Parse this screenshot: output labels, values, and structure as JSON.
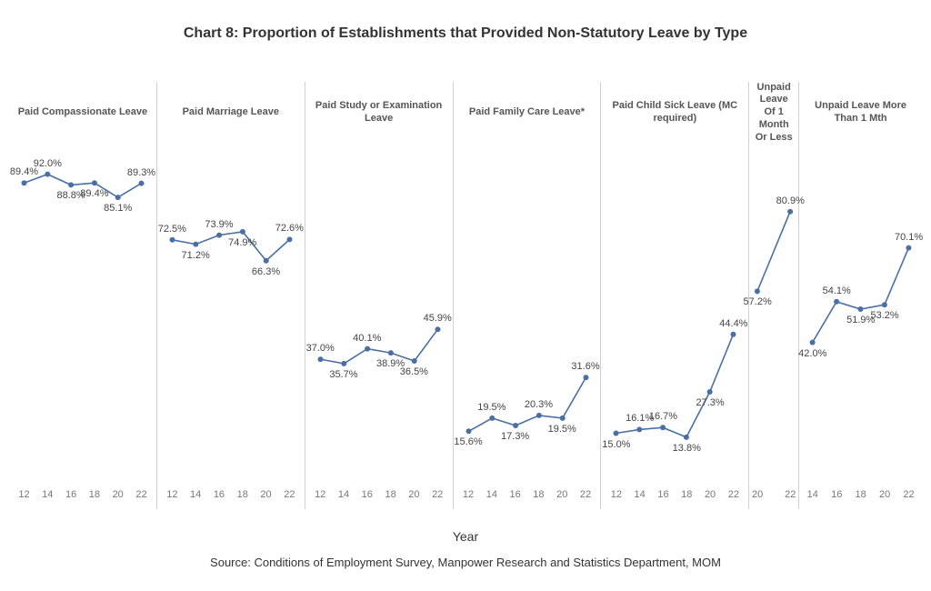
{
  "title": "Chart 8: Proportion of Establishments that Provided Non-Statutory Leave by Type",
  "xaxis_title": "Year",
  "source": "Source: Conditions of Employment Survey, Manpower Research and Statistics Department, MOM",
  "yrange": [
    0,
    100
  ],
  "line_color": "#4a6fa5",
  "marker_color": "#4a6fa5",
  "marker_size": 3,
  "line_width": 1.6,
  "label_color": "#444444",
  "label_fontsize": 11,
  "tick_color": "#777777",
  "tick_fontsize": 11,
  "header_fontsize": 11,
  "panel_border_color": "#d0d0d0",
  "background_color": "#ffffff",
  "panels": [
    {
      "title": "Paid Compassionate Leave",
      "width_weight": 6,
      "years": [
        12,
        14,
        16,
        18,
        20,
        22
      ],
      "values": [
        89.4,
        92.0,
        88.8,
        89.4,
        85.1,
        89.3
      ],
      "label_suffix": "%",
      "label_pos": [
        "above",
        "above",
        "below",
        "below",
        "below",
        "above"
      ]
    },
    {
      "title": "Paid Marriage Leave",
      "width_weight": 6,
      "years": [
        12,
        14,
        16,
        18,
        20,
        22
      ],
      "values": [
        72.5,
        71.2,
        73.9,
        74.9,
        66.3,
        72.6
      ],
      "label_suffix": "%",
      "label_pos": [
        "above",
        "below",
        "above",
        "below",
        "below",
        "above"
      ]
    },
    {
      "title": "Paid Study or Examination Leave",
      "width_weight": 6,
      "years": [
        12,
        14,
        16,
        18,
        20,
        22
      ],
      "values": [
        37.0,
        35.7,
        40.1,
        38.9,
        36.5,
        45.9
      ],
      "label_suffix": "%",
      "label_pos": [
        "above",
        "below",
        "above",
        "below",
        "below",
        "above"
      ]
    },
    {
      "title": "Paid Family Care Leave*",
      "width_weight": 6,
      "years": [
        12,
        14,
        16,
        18,
        20,
        22
      ],
      "values": [
        15.6,
        19.5,
        17.3,
        20.3,
        19.5,
        31.6
      ],
      "label_suffix": "%",
      "label_pos": [
        "below",
        "above",
        "below",
        "above",
        "below",
        "above"
      ]
    },
    {
      "title": "Paid Child Sick Leave (MC required)",
      "width_weight": 6,
      "years": [
        12,
        14,
        16,
        18,
        20,
        22
      ],
      "values": [
        15.0,
        16.1,
        16.7,
        13.8,
        27.3,
        44.4
      ],
      "label_suffix": "%",
      "label_pos": [
        "below",
        "above",
        "above",
        "below",
        "below",
        "above"
      ]
    },
    {
      "title": "Unpaid Leave Of 1 Month Or Less",
      "width_weight": 2,
      "years": [
        20,
        22
      ],
      "values": [
        57.2,
        80.9
      ],
      "label_suffix": "%",
      "label_pos": [
        "below",
        "above"
      ]
    },
    {
      "title": "Unpaid Leave More Than 1 Mth",
      "width_weight": 5,
      "years": [
        14,
        16,
        18,
        20,
        22
      ],
      "values": [
        42.0,
        54.1,
        51.9,
        53.2,
        70.1
      ],
      "label_suffix": "%",
      "label_pos": [
        "below",
        "above",
        "below",
        "below",
        "above"
      ]
    }
  ]
}
